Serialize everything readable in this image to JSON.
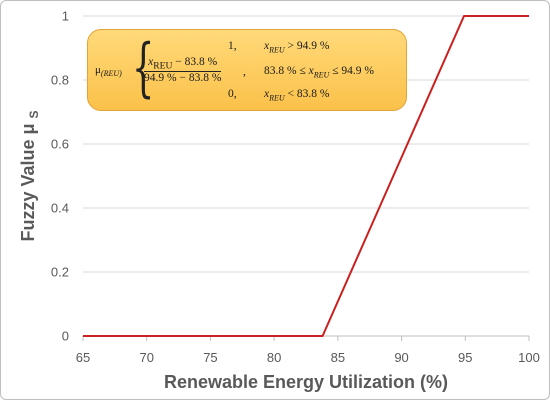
{
  "chart_data": {
    "type": "line",
    "title": "",
    "xlabel": "Renewable Energy Utilization (%)",
    "ylabel": "Fuzzy Value",
    "ylabel_symbol": "μ",
    "ylabel_subscript": "S",
    "xlim": [
      65,
      100
    ],
    "ylim": [
      0,
      1
    ],
    "x_ticks": [
      "65",
      "70",
      "75",
      "80",
      "85",
      "90",
      "95",
      "100"
    ],
    "y_ticks": [
      "0",
      "0.2",
      "0.4",
      "0.6",
      "0.8",
      "1"
    ],
    "grid": "horizontal",
    "legend": "none",
    "series": [
      {
        "color": "#cc1f1f",
        "x": [
          65,
          83.8,
          94.9,
          100
        ],
        "y": [
          0,
          0,
          1,
          1
        ]
      }
    ]
  },
  "formula": {
    "lhs": "μ",
    "lhs_sub": "(REU)",
    "case1_value": "1,",
    "case1_cond_var": "x",
    "case1_cond_sub": "REU",
    "case1_cond_rest": " > 94.9 %",
    "case2_num_var": "x",
    "case2_num_sub": "REU",
    "case2_num_rest": " − 83.8 %",
    "case2_den": "94.9 % − 83.8 %",
    "case2_comma": ",",
    "case2_cond_pre": "83.8 % ≤ ",
    "case2_cond_var": "x",
    "case2_cond_sub": "REU",
    "case2_cond_rest": " ≤ 94.9 %",
    "case3_value": "0,",
    "case3_cond_var": "x",
    "case3_cond_sub": "REU",
    "case3_cond_rest": " < 83.8 %"
  },
  "colors": {
    "line": "#cc1f1f",
    "grid": "#d9d9d9",
    "axis_text": "#595959",
    "formula_bg": "#fbc14a"
  }
}
